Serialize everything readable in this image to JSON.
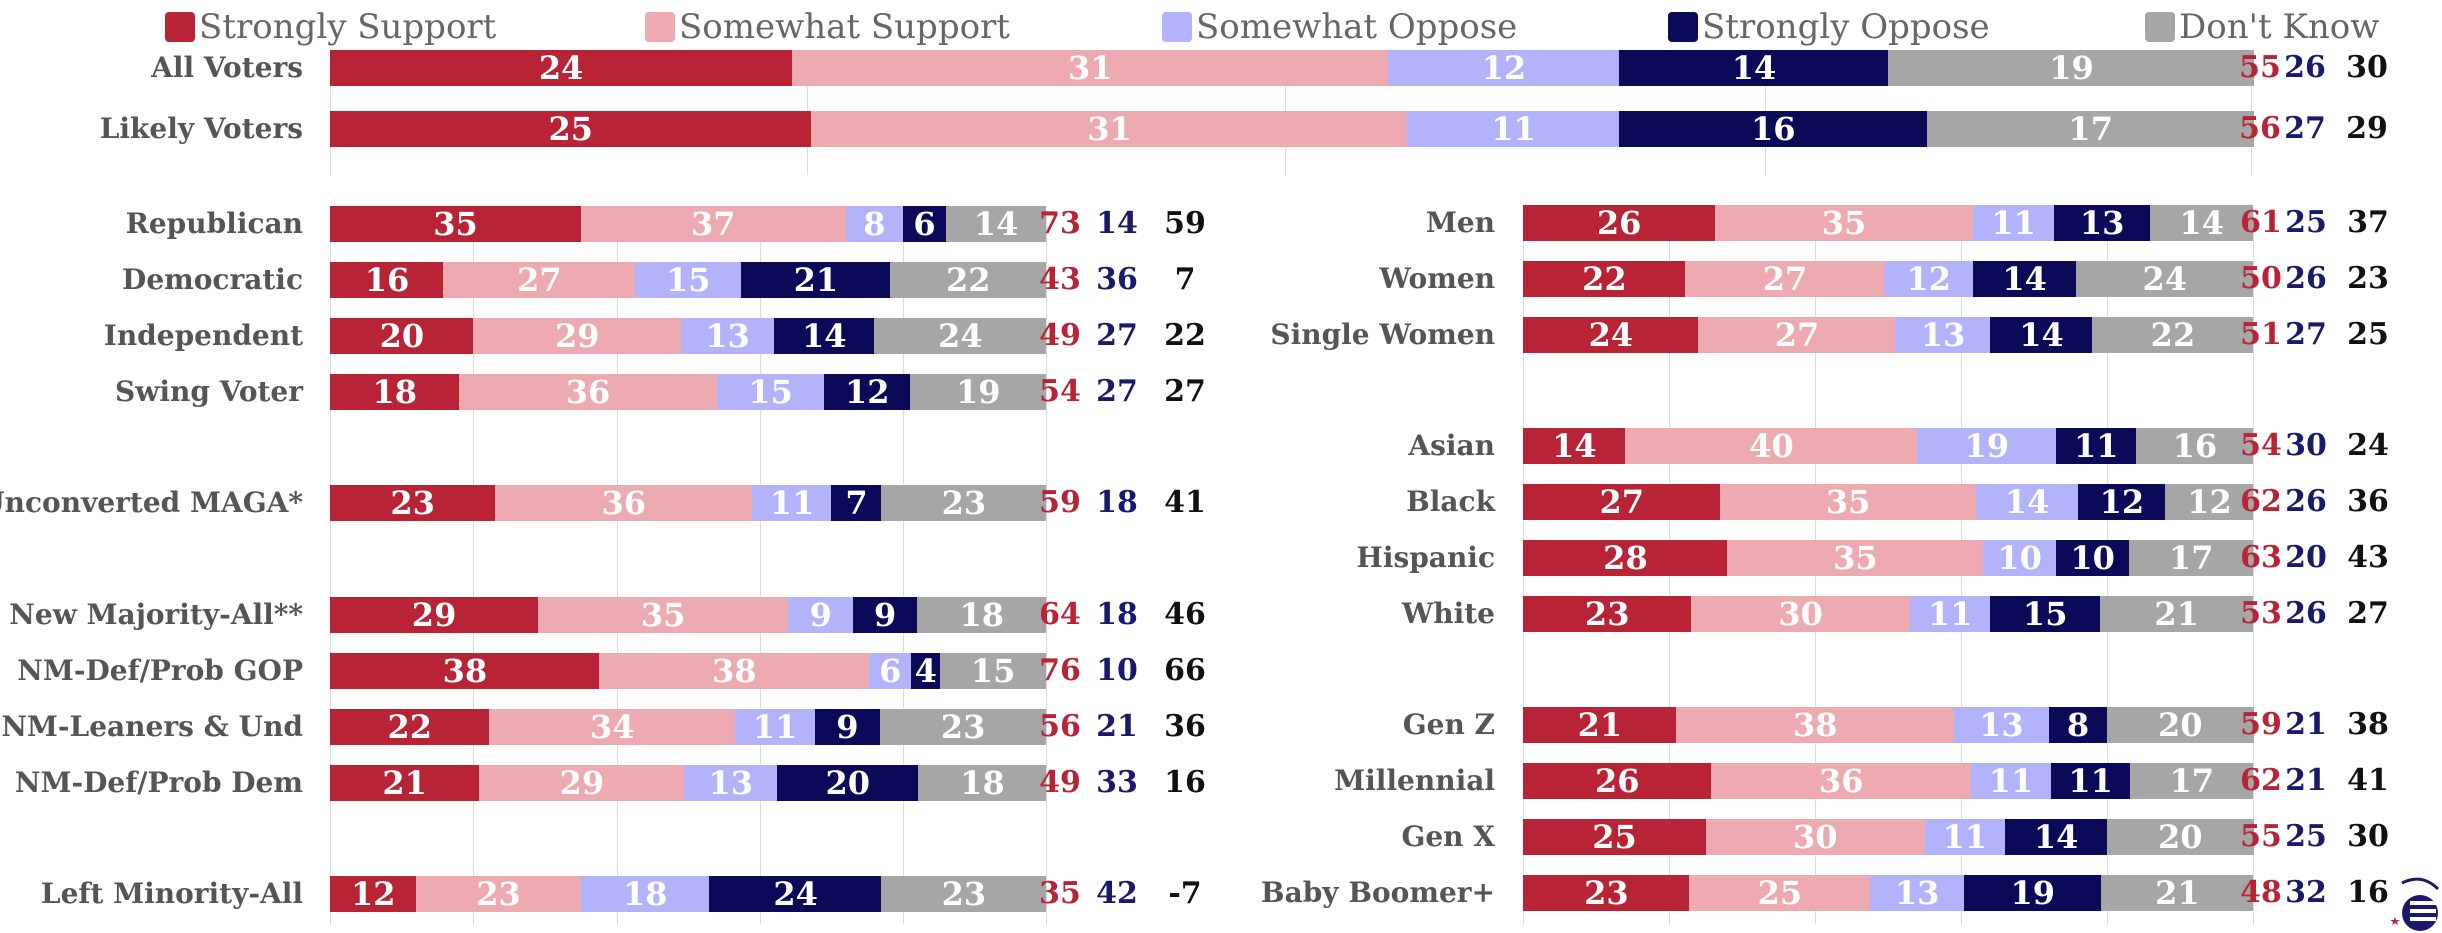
{
  "chart_data": {
    "type": "bar",
    "stacked": true,
    "orientation": "horizontal",
    "legend_position": "top",
    "grid": true,
    "series": [
      {
        "name": "Strongly Support",
        "color": "#b82335"
      },
      {
        "name": "Somewhat Support",
        "color": "#eeaab1"
      },
      {
        "name": "Somewhat Oppose",
        "color": "#b3b3fb"
      },
      {
        "name": "Strongly Oppose",
        "color": "#0a0a59"
      },
      {
        "name": "Don't Know",
        "color": "#a6a6a6"
      }
    ],
    "net_colors": {
      "support": "#b82335",
      "oppose": "#1a1a6b",
      "diff": "#111111"
    },
    "panels": [
      {
        "id": "top",
        "rows": [
          {
            "label": "All Voters",
            "values": [
              24,
              31,
              12,
              14,
              19
            ],
            "totals": [
              55,
              26,
              30
            ]
          },
          {
            "label": "Likely Voters",
            "values": [
              25,
              31,
              11,
              16,
              17
            ],
            "totals": [
              56,
              27,
              29
            ]
          }
        ]
      },
      {
        "id": "left",
        "rows": [
          {
            "label": "Republican",
            "values": [
              35,
              37,
              8,
              6,
              14
            ],
            "totals": [
              73,
              14,
              59
            ]
          },
          {
            "label": "Democratic",
            "values": [
              16,
              27,
              15,
              21,
              22
            ],
            "totals": [
              43,
              36,
              7
            ]
          },
          {
            "label": "Independent",
            "values": [
              20,
              29,
              13,
              14,
              24
            ],
            "totals": [
              49,
              27,
              22
            ]
          },
          {
            "label": "Swing Voter",
            "values": [
              18,
              36,
              15,
              12,
              19
            ],
            "totals": [
              54,
              27,
              27
            ]
          },
          {
            "label": "Unconverted MAGA*",
            "values": [
              23,
              36,
              11,
              7,
              23
            ],
            "totals": [
              59,
              18,
              41
            ]
          },
          {
            "label": "New Majority-All**",
            "values": [
              29,
              35,
              9,
              9,
              18
            ],
            "totals": [
              64,
              18,
              46
            ]
          },
          {
            "label": "NM-Def/Prob GOP",
            "values": [
              38,
              38,
              6,
              4,
              15
            ],
            "totals": [
              76,
              10,
              66
            ]
          },
          {
            "label": "NM-Leaners & Und",
            "values": [
              22,
              34,
              11,
              9,
              23
            ],
            "totals": [
              56,
              21,
              36
            ]
          },
          {
            "label": "NM-Def/Prob Dem",
            "values": [
              21,
              29,
              13,
              20,
              18
            ],
            "totals": [
              49,
              33,
              16
            ]
          },
          {
            "label": "Left Minority-All",
            "values": [
              12,
              23,
              18,
              24,
              23
            ],
            "totals": [
              35,
              42,
              -7
            ]
          }
        ]
      },
      {
        "id": "right",
        "rows": [
          {
            "label": "Men",
            "values": [
              26,
              35,
              11,
              13,
              14
            ],
            "totals": [
              61,
              25,
              37
            ]
          },
          {
            "label": "Women",
            "values": [
              22,
              27,
              12,
              14,
              24
            ],
            "totals": [
              50,
              26,
              23
            ]
          },
          {
            "label": "Single Women",
            "values": [
              24,
              27,
              13,
              14,
              22
            ],
            "totals": [
              51,
              27,
              25
            ]
          },
          {
            "label": "Asian",
            "values": [
              14,
              40,
              19,
              11,
              16
            ],
            "totals": [
              54,
              30,
              24
            ]
          },
          {
            "label": "Black",
            "values": [
              27,
              35,
              14,
              12,
              12
            ],
            "totals": [
              62,
              26,
              36
            ]
          },
          {
            "label": "Hispanic",
            "values": [
              28,
              35,
              10,
              10,
              17
            ],
            "totals": [
              63,
              20,
              43
            ]
          },
          {
            "label": "White",
            "values": [
              23,
              30,
              11,
              15,
              21
            ],
            "totals": [
              53,
              26,
              27
            ]
          },
          {
            "label": "Gen Z",
            "values": [
              21,
              38,
              13,
              8,
              20
            ],
            "totals": [
              59,
              21,
              38
            ]
          },
          {
            "label": "Millennial",
            "values": [
              26,
              36,
              11,
              11,
              17
            ],
            "totals": [
              62,
              21,
              41
            ]
          },
          {
            "label": "Gen X",
            "values": [
              25,
              30,
              11,
              14,
              20
            ],
            "totals": [
              55,
              25,
              30
            ]
          },
          {
            "label": "Baby Boomer+",
            "values": [
              23,
              25,
              13,
              19,
              21
            ],
            "totals": [
              48,
              32,
              16
            ]
          }
        ]
      }
    ]
  }
}
